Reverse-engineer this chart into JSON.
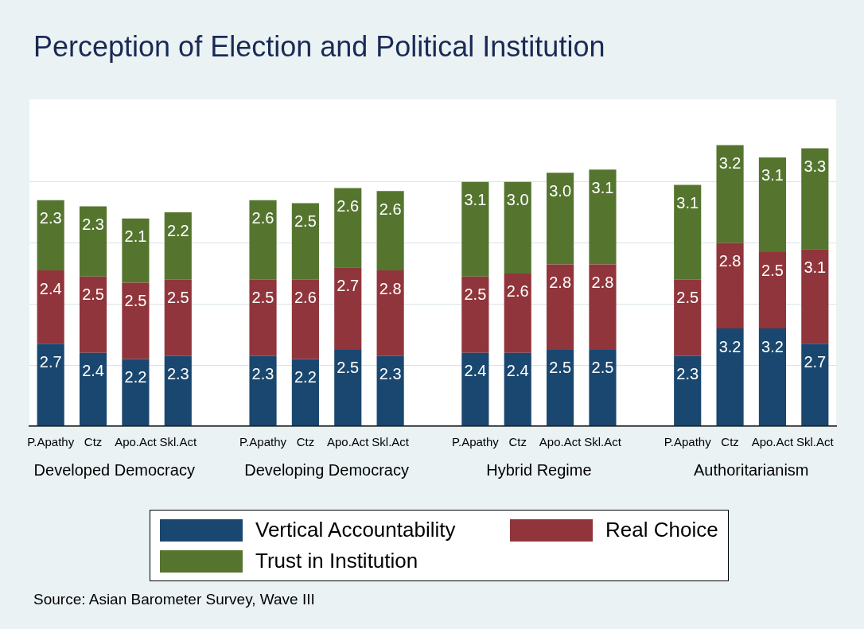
{
  "chart_data": {
    "type": "bar",
    "title": "Perception of Election and Political Institution",
    "categories": [
      "P.Apathy",
      "Ctz",
      "Apo.Act",
      "Skl.Act",
      null,
      "P.Apathy",
      "Ctz",
      "Apo.Act",
      "Skl.Act",
      null,
      "P.Apathy",
      "Ctz",
      "Apo.Act",
      "Skl.Act",
      null,
      "P.Apathy",
      "Ctz",
      "Apo.Act",
      "Skl.Act"
    ],
    "stacked": true,
    "series": [
      {
        "name": "Vertical Accountability",
        "color": "#1a476f",
        "values": [
          2.7,
          2.4,
          2.2,
          2.3,
          null,
          2.3,
          2.2,
          2.5,
          2.3,
          null,
          2.4,
          2.4,
          2.5,
          2.5,
          null,
          2.3,
          3.2,
          3.2,
          2.7
        ]
      },
      {
        "name": "Real Choice",
        "color": "#90353b",
        "values": [
          2.4,
          2.5,
          2.5,
          2.5,
          null,
          2.5,
          2.6,
          2.7,
          2.8,
          null,
          2.5,
          2.6,
          2.8,
          2.8,
          null,
          2.5,
          2.8,
          2.5,
          3.1
        ]
      },
      {
        "name": "Trust in Institution",
        "color": "#55752f",
        "values": [
          2.3,
          2.3,
          2.1,
          2.2,
          null,
          2.6,
          2.5,
          2.6,
          2.6,
          null,
          3.1,
          3.0,
          3.0,
          3.1,
          null,
          3.1,
          3.2,
          3.1,
          3.3
        ],
        "value_labels": [
          "2.3",
          "2.3",
          "2.1",
          "2.2",
          null,
          "2.6",
          "2.5",
          "2.6",
          "2.6",
          null,
          "3.1",
          "3.0",
          "3.0",
          "3.1",
          null,
          "3.1",
          "3.2",
          "3.1",
          "3.3"
        ]
      }
    ],
    "data_labels": true,
    "ylim": [
      0,
      10.7
    ],
    "yticks": [
      {
        "value": 0,
        "label": null
      },
      {
        "value": 2,
        "label": null
      },
      {
        "value": 4,
        "label": null
      },
      {
        "value": 6,
        "label": null
      },
      {
        "value": 8,
        "label": null
      }
    ],
    "tick_labels": "x",
    "grid": "y",
    "legend": "bottom",
    "annotations": [
      "Developed Democracy",
      "Developing Democracy",
      "Hybrid Regime",
      "Authoritarianism",
      "Source: Asian Barometer Survey, Wave III"
    ]
  }
}
